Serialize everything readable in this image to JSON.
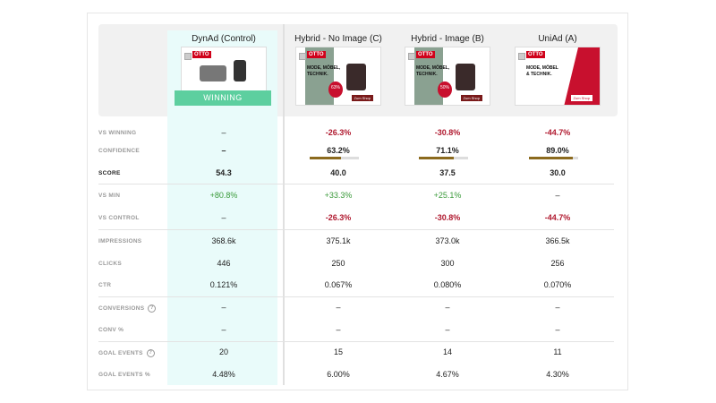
{
  "columns": [
    {
      "name": "DynAd (Control)",
      "winning": "WINNING",
      "vs_winning": "–",
      "confidence": "–",
      "score": "54.3",
      "vs_min": "+80.8%",
      "vs_control": "–",
      "impressions": "368.6k",
      "clicks": "446",
      "ctr": "0.121%",
      "conversions": "–",
      "conv_pct": "–",
      "goal_events": "20",
      "goal_events_pct": "4.48%"
    },
    {
      "name": "Hybrid - No Image (C)",
      "ad_badge": "63%",
      "vs_winning": "-26.3%",
      "confidence": "63.2%",
      "confidence_value": 63.2,
      "score": "40.0",
      "vs_min": "+33.3%",
      "vs_control": "-26.3%",
      "impressions": "375.1k",
      "clicks": "250",
      "ctr": "0.067%",
      "conversions": "–",
      "conv_pct": "–",
      "goal_events": "15",
      "goal_events_pct": "6.00%"
    },
    {
      "name": "Hybrid - Image (B)",
      "ad_badge": "50%",
      "vs_winning": "-30.8%",
      "confidence": "71.1%",
      "confidence_value": 71.1,
      "score": "37.5",
      "vs_min": "+25.1%",
      "vs_control": "-30.8%",
      "impressions": "373.0k",
      "clicks": "300",
      "ctr": "0.080%",
      "conversions": "–",
      "conv_pct": "–",
      "goal_events": "14",
      "goal_events_pct": "4.67%"
    },
    {
      "name": "UniAd (A)",
      "vs_winning": "-44.7%",
      "confidence": "89.0%",
      "confidence_value": 89.0,
      "score": "30.0",
      "vs_min": "–",
      "vs_control": "-44.7%",
      "impressions": "366.5k",
      "clicks": "256",
      "ctr": "0.070%",
      "conversions": "–",
      "conv_pct": "–",
      "goal_events": "11",
      "goal_events_pct": "4.30%"
    }
  ],
  "ad": {
    "logo": "OTTO",
    "headline": "MODE, MÖBEL, TECHNIK.",
    "headline_uni": "MODE, MÖBEL & TECHNIK.",
    "cta": "Zum Shop"
  },
  "labels": {
    "vs_winning": "VS WINNING",
    "confidence": "CONFIDENCE",
    "score": "SCORE",
    "vs_min": "VS MIN",
    "vs_control": "VS CONTROL",
    "impressions": "IMPRESSIONS",
    "clicks": "CLICKS",
    "ctr": "CTR",
    "conversions": "CONVERSIONS",
    "conv_pct": "CONV %",
    "goal_events": "GOAL EVENTS",
    "goal_events_pct": "GOAL EVENTS %"
  },
  "colors": {
    "winning": "#5dcf9f",
    "negative": "#b0182e",
    "positive": "#3a9a3a",
    "confidence_bar": "#8b6a1e",
    "control_highlight": "#e9fbfa"
  }
}
